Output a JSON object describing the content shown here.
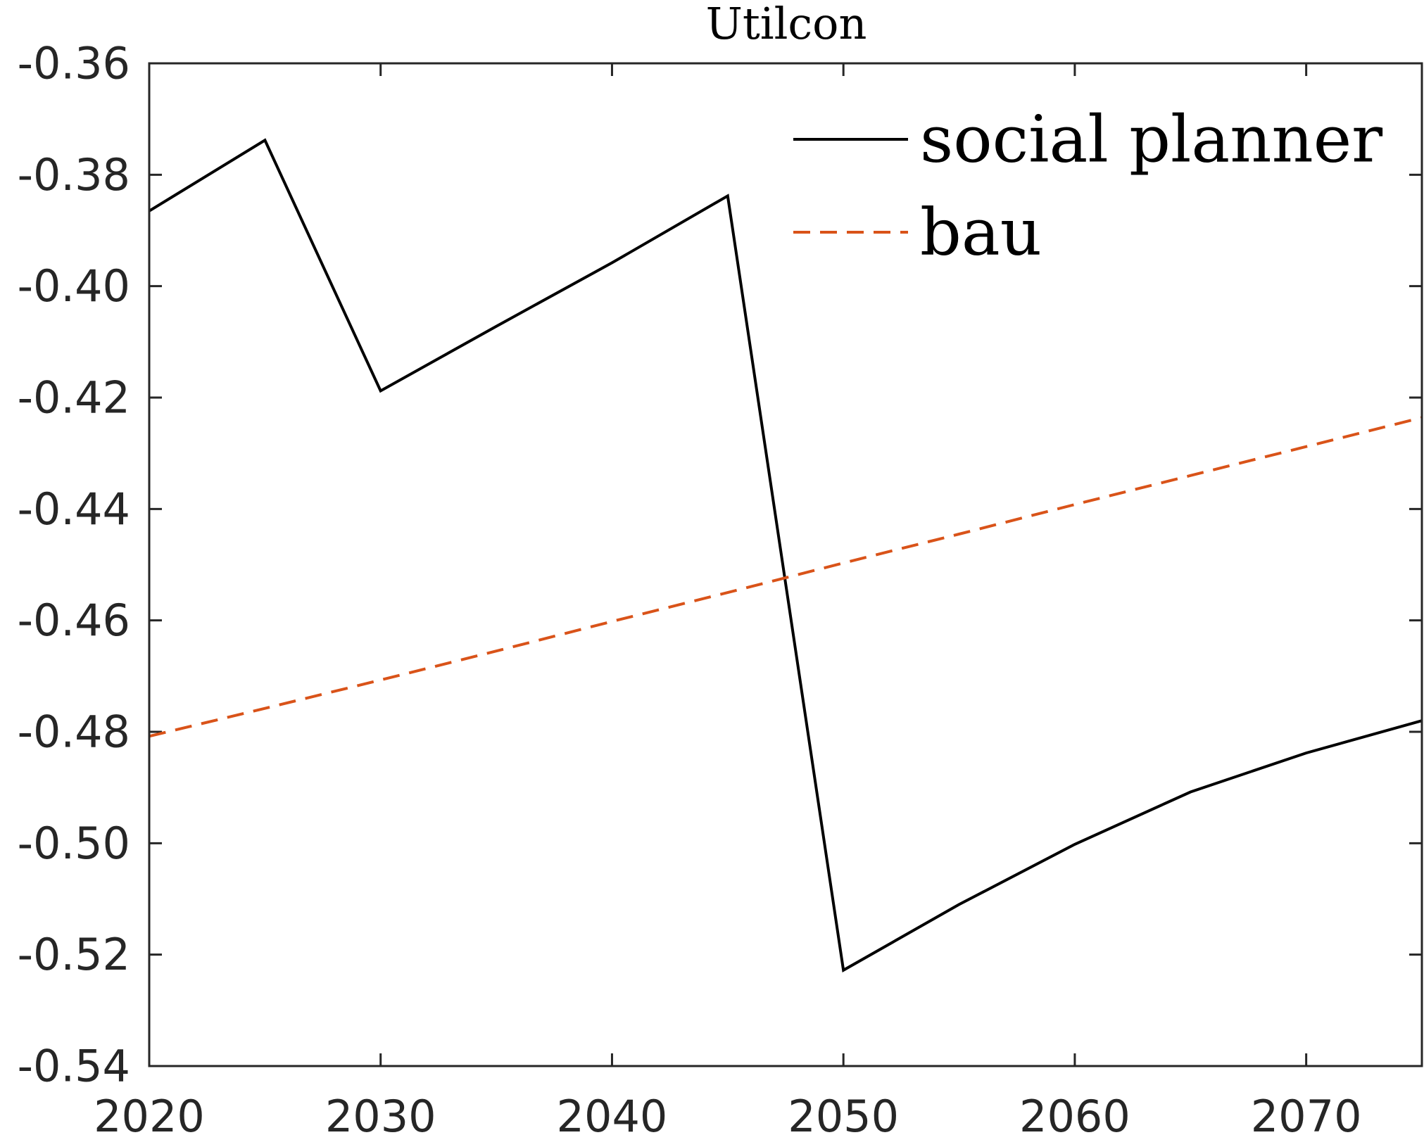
{
  "chart_data": {
    "type": "line",
    "title": "Utilcon",
    "xlabel": "",
    "ylabel": "",
    "xlim": [
      2020,
      2075
    ],
    "ylim": [
      -0.54,
      -0.36
    ],
    "x_ticks": [
      2020,
      2030,
      2040,
      2050,
      2060,
      2070
    ],
    "y_ticks": [
      -0.36,
      -0.38,
      -0.4,
      -0.42,
      -0.44,
      -0.46,
      -0.48,
      -0.5,
      -0.52,
      -0.54
    ],
    "x_tick_labels": [
      "2020",
      "2030",
      "2040",
      "2050",
      "2060",
      "2070"
    ],
    "y_tick_labels": [
      "-0.36",
      "-0.38",
      "-0.40",
      "-0.42",
      "-0.44",
      "-0.46",
      "-0.48",
      "-0.50",
      "-0.52",
      "-0.54"
    ],
    "grid": false,
    "legend_position": "top-right",
    "series": [
      {
        "name": "social planner",
        "color": "#000000",
        "line_style": "solid",
        "x": [
          2020,
          2025,
          2030,
          2035,
          2040,
          2045,
          2050,
          2055,
          2060,
          2065,
          2070,
          2075
        ],
        "y": [
          -0.3865,
          -0.3738,
          -0.4188,
          -0.4072,
          -0.3958,
          -0.3838,
          -0.5228,
          -0.511,
          -0.5002,
          -0.4908,
          -0.4838,
          -0.478
        ]
      },
      {
        "name": "bau",
        "color": "#D95319",
        "line_style": "dashed",
        "x": [
          2020,
          2025,
          2030,
          2035,
          2040,
          2045,
          2050,
          2055,
          2060,
          2065,
          2070,
          2075
        ],
        "y": [
          -0.4808,
          -0.4758,
          -0.4707,
          -0.4655,
          -0.4602,
          -0.455,
          -0.4497,
          -0.4445,
          -0.4392,
          -0.434,
          -0.4288,
          -0.4236
        ]
      }
    ]
  }
}
